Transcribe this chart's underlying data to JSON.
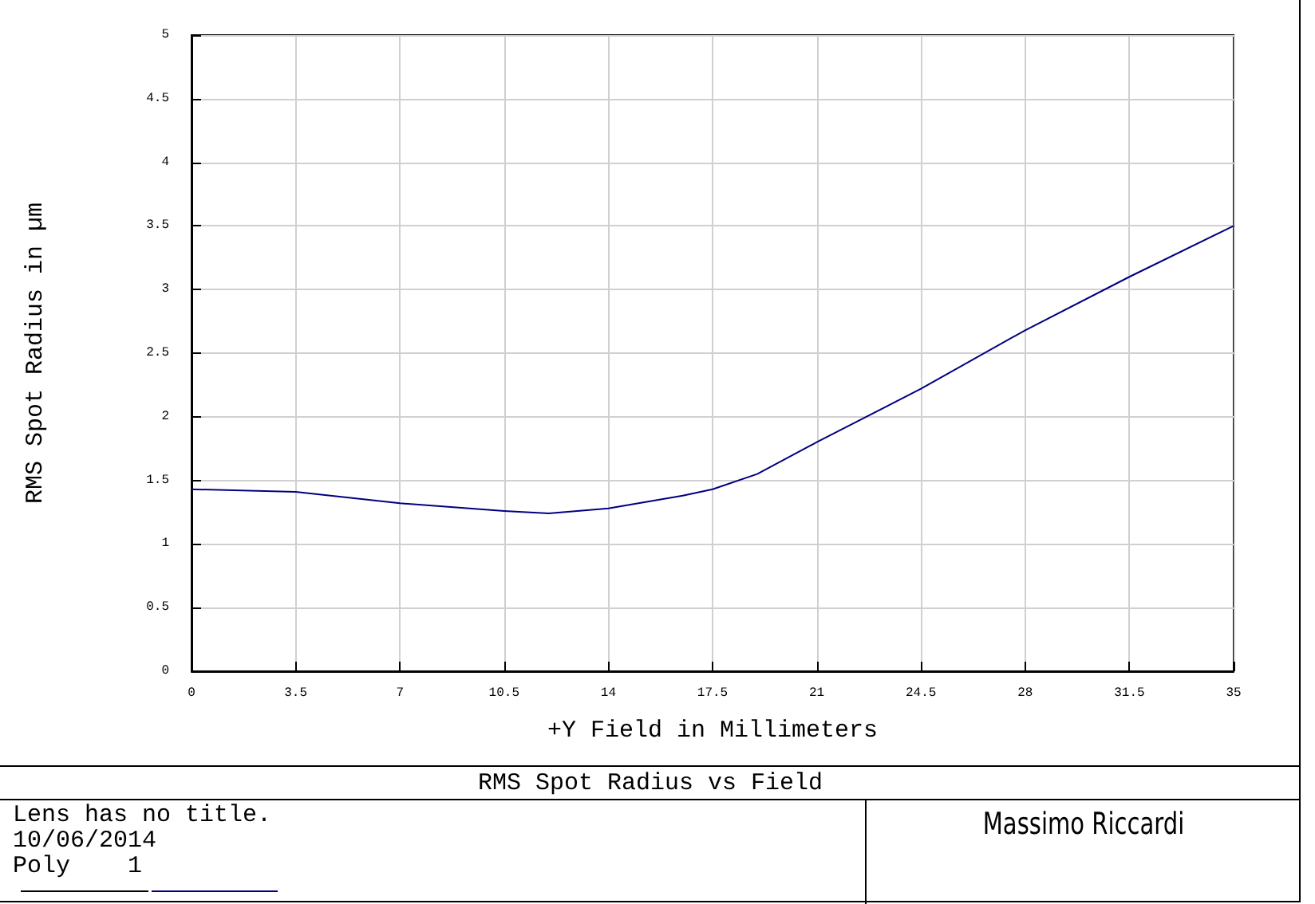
{
  "chart_data": {
    "type": "line",
    "title": "RMS Spot Radius vs Field",
    "xlabel": "+Y Field in Millimeters",
    "ylabel": "RMS Spot Radius in µm",
    "x": [
      0,
      3.5,
      7,
      10.5,
      12,
      14,
      16.5,
      17.5,
      19,
      21,
      24.5,
      28,
      31.5,
      35
    ],
    "series": [
      {
        "color": "#000080",
        "values": [
          1.43,
          1.41,
          1.32,
          1.26,
          1.24,
          1.28,
          1.38,
          1.43,
          1.55,
          1.8,
          2.22,
          2.68,
          3.1,
          3.5
        ]
      }
    ],
    "xlim": [
      0,
      35
    ],
    "xticks": [
      0,
      3.5,
      7,
      10.5,
      14,
      17.5,
      21,
      24.5,
      28,
      31.5,
      35
    ],
    "ylim": [
      0,
      5
    ],
    "yticks": [
      0,
      0.5,
      1,
      1.5,
      2,
      2.5,
      3,
      3.5,
      4,
      4.5,
      5
    ],
    "grid": true,
    "marker": "none",
    "line_style": "solid",
    "annotations": [
      "Lens has no title.",
      "10/06/2014",
      "Poly    1",
      "Massimo Riccardi"
    ]
  }
}
